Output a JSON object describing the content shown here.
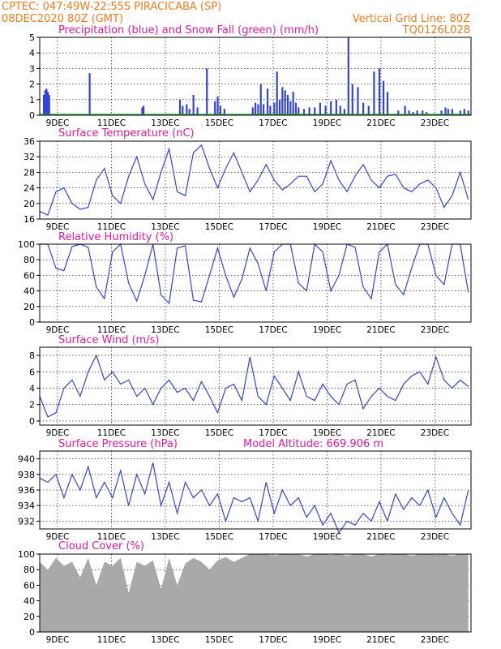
{
  "header": {
    "line1_left": "CPTEC:   047:49W-22:55S   PIRACICABA (SP)",
    "line2_left": "08DEC2020 80Z (GMT)",
    "line2_right": "Vertical Grid Line: 80Z",
    "line3_right": "TQ0126L028"
  },
  "x_tick_labels": [
    "9DEC",
    "11DEC",
    "13DEC",
    "15DEC",
    "17DEC",
    "19DEC",
    "21DEC",
    "23DEC"
  ],
  "colors": {
    "series": "#3344dd",
    "snow": "#22aa22",
    "cloud": "#a9a9a9",
    "header": "#f07b1d",
    "title": "#e6199a"
  },
  "chart_data": [
    {
      "type": "bar",
      "title": "Precipitation (blue) and Snow Fall (green) (mm/h)",
      "ylim": [
        0,
        5
      ],
      "y_ticks": [
        0,
        1,
        2,
        3,
        4,
        5
      ],
      "x_unit": "days since 08DEC 08Z (hourly bars)",
      "series": [
        {
          "values_t": [
            0.15,
            0.2,
            0.25,
            0.3,
            0.35,
            1.85,
            3.8,
            3.85,
            5.2,
            5.3,
            5.45,
            5.55,
            5.7,
            5.85,
            6.2,
            6.5,
            6.6,
            6.7,
            6.85,
            7.9,
            8.0,
            8.1,
            8.2,
            8.3,
            8.45,
            8.55,
            8.7,
            8.8,
            8.9,
            9.0,
            9.1,
            9.2,
            9.3,
            9.4,
            9.5,
            9.6,
            9.8,
            10.0,
            10.2,
            10.4,
            10.6,
            10.8,
            11.0,
            11.15,
            11.3,
            11.45,
            11.6,
            11.8,
            12.0,
            12.2,
            12.4,
            12.6,
            12.75,
            12.9,
            13.3,
            13.55,
            13.7,
            13.85,
            14.0,
            14.2,
            14.35,
            14.9,
            15.05,
            15.15,
            15.3,
            15.6,
            15.75,
            15.9
          ],
          "values": [
            1.3,
            1.6,
            1.7,
            1.5,
            1.3,
            2.7,
            0.5,
            0.6,
            1.0,
            0.6,
            0.7,
            0.4,
            1.3,
            0.5,
            3.0,
            0.9,
            1.2,
            0.6,
            0.4,
            0.5,
            0.8,
            0.7,
            2.0,
            0.7,
            1.7,
            0.6,
            0.8,
            2.8,
            1.0,
            1.8,
            1.6,
            1.3,
            0.9,
            1.5,
            0.8,
            0.5,
            0.4,
            0.5,
            0.5,
            0.8,
            0.6,
            0.9,
            1.0,
            0.6,
            0.4,
            5.0,
            2.0,
            1.8,
            0.8,
            0.6,
            2.8,
            3.0,
            2.2,
            1.5,
            0.3,
            0.6,
            0.3,
            0.2,
            0.3,
            0.3,
            0.2,
            0.3,
            0.5,
            0.4,
            0.4,
            0.3,
            0.4,
            0.3
          ]
        },
        {
          "name": "Snow Fall",
          "values_t": [
            0,
            16
          ],
          "values": [
            0,
            0
          ]
        }
      ]
    },
    {
      "type": "line",
      "title": "Surface Temperature (nC)",
      "ylim": [
        16,
        36
      ],
      "y_ticks": [
        16,
        20,
        24,
        28,
        32,
        36
      ],
      "x": [
        0,
        0.3,
        0.6,
        0.9,
        1.2,
        1.5,
        1.8,
        2.1,
        2.4,
        2.7,
        3.0,
        3.3,
        3.6,
        3.9,
        4.2,
        4.5,
        4.8,
        5.1,
        5.4,
        5.7,
        6.0,
        6.3,
        6.6,
        6.9,
        7.2,
        7.5,
        7.8,
        8.1,
        8.4,
        8.7,
        9.0,
        9.3,
        9.6,
        9.9,
        10.2,
        10.5,
        10.8,
        11.1,
        11.4,
        11.7,
        12.0,
        12.3,
        12.6,
        12.9,
        13.2,
        13.5,
        13.8,
        14.1,
        14.4,
        14.7,
        15.0,
        15.3,
        15.6,
        15.9
      ],
      "values": [
        18,
        17,
        23,
        24,
        20,
        18.5,
        19,
        26,
        29,
        22,
        20,
        27,
        32,
        25,
        21,
        28,
        34,
        23,
        22,
        33,
        35,
        29,
        24,
        29,
        33,
        28,
        23,
        26,
        30,
        26,
        23.5,
        25,
        27,
        27,
        23,
        25,
        31,
        26,
        23,
        27,
        30,
        26,
        24,
        27,
        27.5,
        24,
        23,
        25,
        26,
        24,
        19,
        22,
        28,
        21
      ]
    },
    {
      "type": "line",
      "title": "Relative Humidity (%)",
      "ylim": [
        0,
        100
      ],
      "y_ticks": [
        0,
        20,
        40,
        60,
        80,
        100
      ],
      "x": [
        0,
        0.3,
        0.6,
        0.9,
        1.2,
        1.5,
        1.8,
        2.1,
        2.4,
        2.7,
        3.0,
        3.3,
        3.6,
        3.9,
        4.2,
        4.5,
        4.8,
        5.1,
        5.4,
        5.7,
        6.0,
        6.3,
        6.6,
        6.9,
        7.2,
        7.5,
        7.8,
        8.1,
        8.4,
        8.7,
        9.0,
        9.3,
        9.6,
        9.9,
        10.2,
        10.5,
        10.8,
        11.1,
        11.4,
        11.7,
        12.0,
        12.3,
        12.6,
        12.9,
        13.2,
        13.5,
        13.8,
        14.1,
        14.4,
        14.7,
        15.0,
        15.3,
        15.6,
        15.9
      ],
      "values": [
        100,
        100,
        69,
        66,
        97,
        100,
        96,
        45,
        30,
        90,
        100,
        50,
        27,
        60,
        100,
        35,
        24,
        95,
        98,
        28,
        26,
        60,
        95,
        60,
        32,
        55,
        95,
        75,
        40,
        90,
        100,
        100,
        50,
        40,
        100,
        90,
        40,
        60,
        100,
        96,
        45,
        30,
        90,
        100,
        48,
        35,
        70,
        100,
        100,
        60,
        48,
        100,
        100,
        38
      ]
    },
    {
      "type": "line",
      "title": "Surface Wind (m/s)",
      "ylim": [
        -0.5,
        9
      ],
      "y_ticks": [
        0,
        2,
        4,
        6,
        8
      ],
      "x": [
        0,
        0.3,
        0.6,
        0.9,
        1.2,
        1.5,
        1.8,
        2.1,
        2.4,
        2.7,
        3.0,
        3.3,
        3.6,
        3.9,
        4.2,
        4.5,
        4.8,
        5.1,
        5.4,
        5.7,
        6.0,
        6.3,
        6.6,
        6.9,
        7.2,
        7.5,
        7.8,
        8.1,
        8.4,
        8.7,
        9.0,
        9.3,
        9.6,
        9.9,
        10.2,
        10.5,
        10.8,
        11.1,
        11.4,
        11.7,
        12.0,
        12.3,
        12.6,
        12.9,
        13.2,
        13.5,
        13.8,
        14.1,
        14.4,
        14.7,
        15.0,
        15.3,
        15.6,
        15.9
      ],
      "values": [
        3,
        0.5,
        1,
        4,
        5,
        3,
        6,
        8,
        5,
        6,
        4.5,
        5,
        3,
        4,
        2,
        4,
        5,
        3.5,
        4,
        2.5,
        4.8,
        3,
        1,
        4,
        4.5,
        2.5,
        7.8,
        3,
        2,
        5.5,
        4,
        2.5,
        6,
        3,
        2.5,
        4.5,
        3,
        2,
        4.5,
        5,
        1.5,
        3,
        4,
        3,
        2.5,
        4.5,
        5.5,
        6,
        4.5,
        7.8,
        5,
        4,
        5,
        4.2
      ]
    },
    {
      "type": "line",
      "title": "Surface Pressure (hPa)",
      "annotation": "Model Altitude: 669.906 m",
      "ylim": [
        931,
        941
      ],
      "y_ticks": [
        932,
        934,
        936,
        938,
        940
      ],
      "x": [
        0,
        0.3,
        0.6,
        0.9,
        1.2,
        1.5,
        1.8,
        2.1,
        2.4,
        2.7,
        3.0,
        3.3,
        3.6,
        3.9,
        4.2,
        4.5,
        4.8,
        5.1,
        5.4,
        5.7,
        6.0,
        6.3,
        6.6,
        6.9,
        7.2,
        7.5,
        7.8,
        8.1,
        8.4,
        8.7,
        9.0,
        9.3,
        9.6,
        9.9,
        10.2,
        10.5,
        10.8,
        11.1,
        11.4,
        11.7,
        12.0,
        12.3,
        12.6,
        12.9,
        13.2,
        13.5,
        13.8,
        14.1,
        14.4,
        14.7,
        15.0,
        15.3,
        15.6,
        15.9
      ],
      "values": [
        937.5,
        937,
        938,
        935,
        938,
        936,
        939,
        935,
        937,
        935,
        938.5,
        934,
        938,
        935.5,
        939.5,
        934,
        937,
        933,
        937,
        935,
        936,
        934,
        935.5,
        932,
        935,
        934.5,
        935,
        932,
        937,
        933,
        936,
        934,
        935,
        932.5,
        934,
        931.5,
        933,
        930.5,
        932,
        931.5,
        933,
        932,
        934.5,
        932,
        935.5,
        933.5,
        935,
        934,
        936,
        932.5,
        935,
        933,
        931.5,
        936
      ]
    },
    {
      "type": "area",
      "title": "Cloud Cover (%)",
      "ylim": [
        0,
        100
      ],
      "y_ticks": [
        0,
        20,
        40,
        60,
        80,
        100
      ],
      "x": [
        0,
        0.3,
        0.6,
        0.9,
        1.2,
        1.5,
        1.8,
        2.1,
        2.4,
        2.7,
        3.0,
        3.3,
        3.6,
        3.9,
        4.2,
        4.5,
        4.8,
        5.1,
        5.4,
        5.7,
        6.0,
        6.3,
        6.6,
        6.9,
        7.2,
        7.5,
        7.8,
        8.1,
        8.4,
        8.7,
        9.0,
        9.3,
        9.6,
        9.9,
        10.2,
        10.5,
        10.8,
        11.1,
        11.4,
        11.7,
        12.0,
        12.3,
        12.6,
        12.9,
        13.2,
        13.5,
        13.8,
        14.1,
        14.4,
        14.7,
        15.0,
        15.3,
        15.6,
        15.9
      ],
      "values": [
        90,
        80,
        95,
        85,
        90,
        70,
        95,
        60,
        90,
        85,
        95,
        50,
        90,
        85,
        92,
        55,
        95,
        60,
        88,
        95,
        90,
        80,
        92,
        96,
        90,
        95,
        100,
        100,
        100,
        98,
        100,
        100,
        100,
        97,
        100,
        100,
        99,
        100,
        98,
        100,
        100,
        97,
        100,
        99,
        100,
        100,
        98,
        100,
        100,
        99,
        100,
        98,
        100,
        100
      ]
    }
  ]
}
